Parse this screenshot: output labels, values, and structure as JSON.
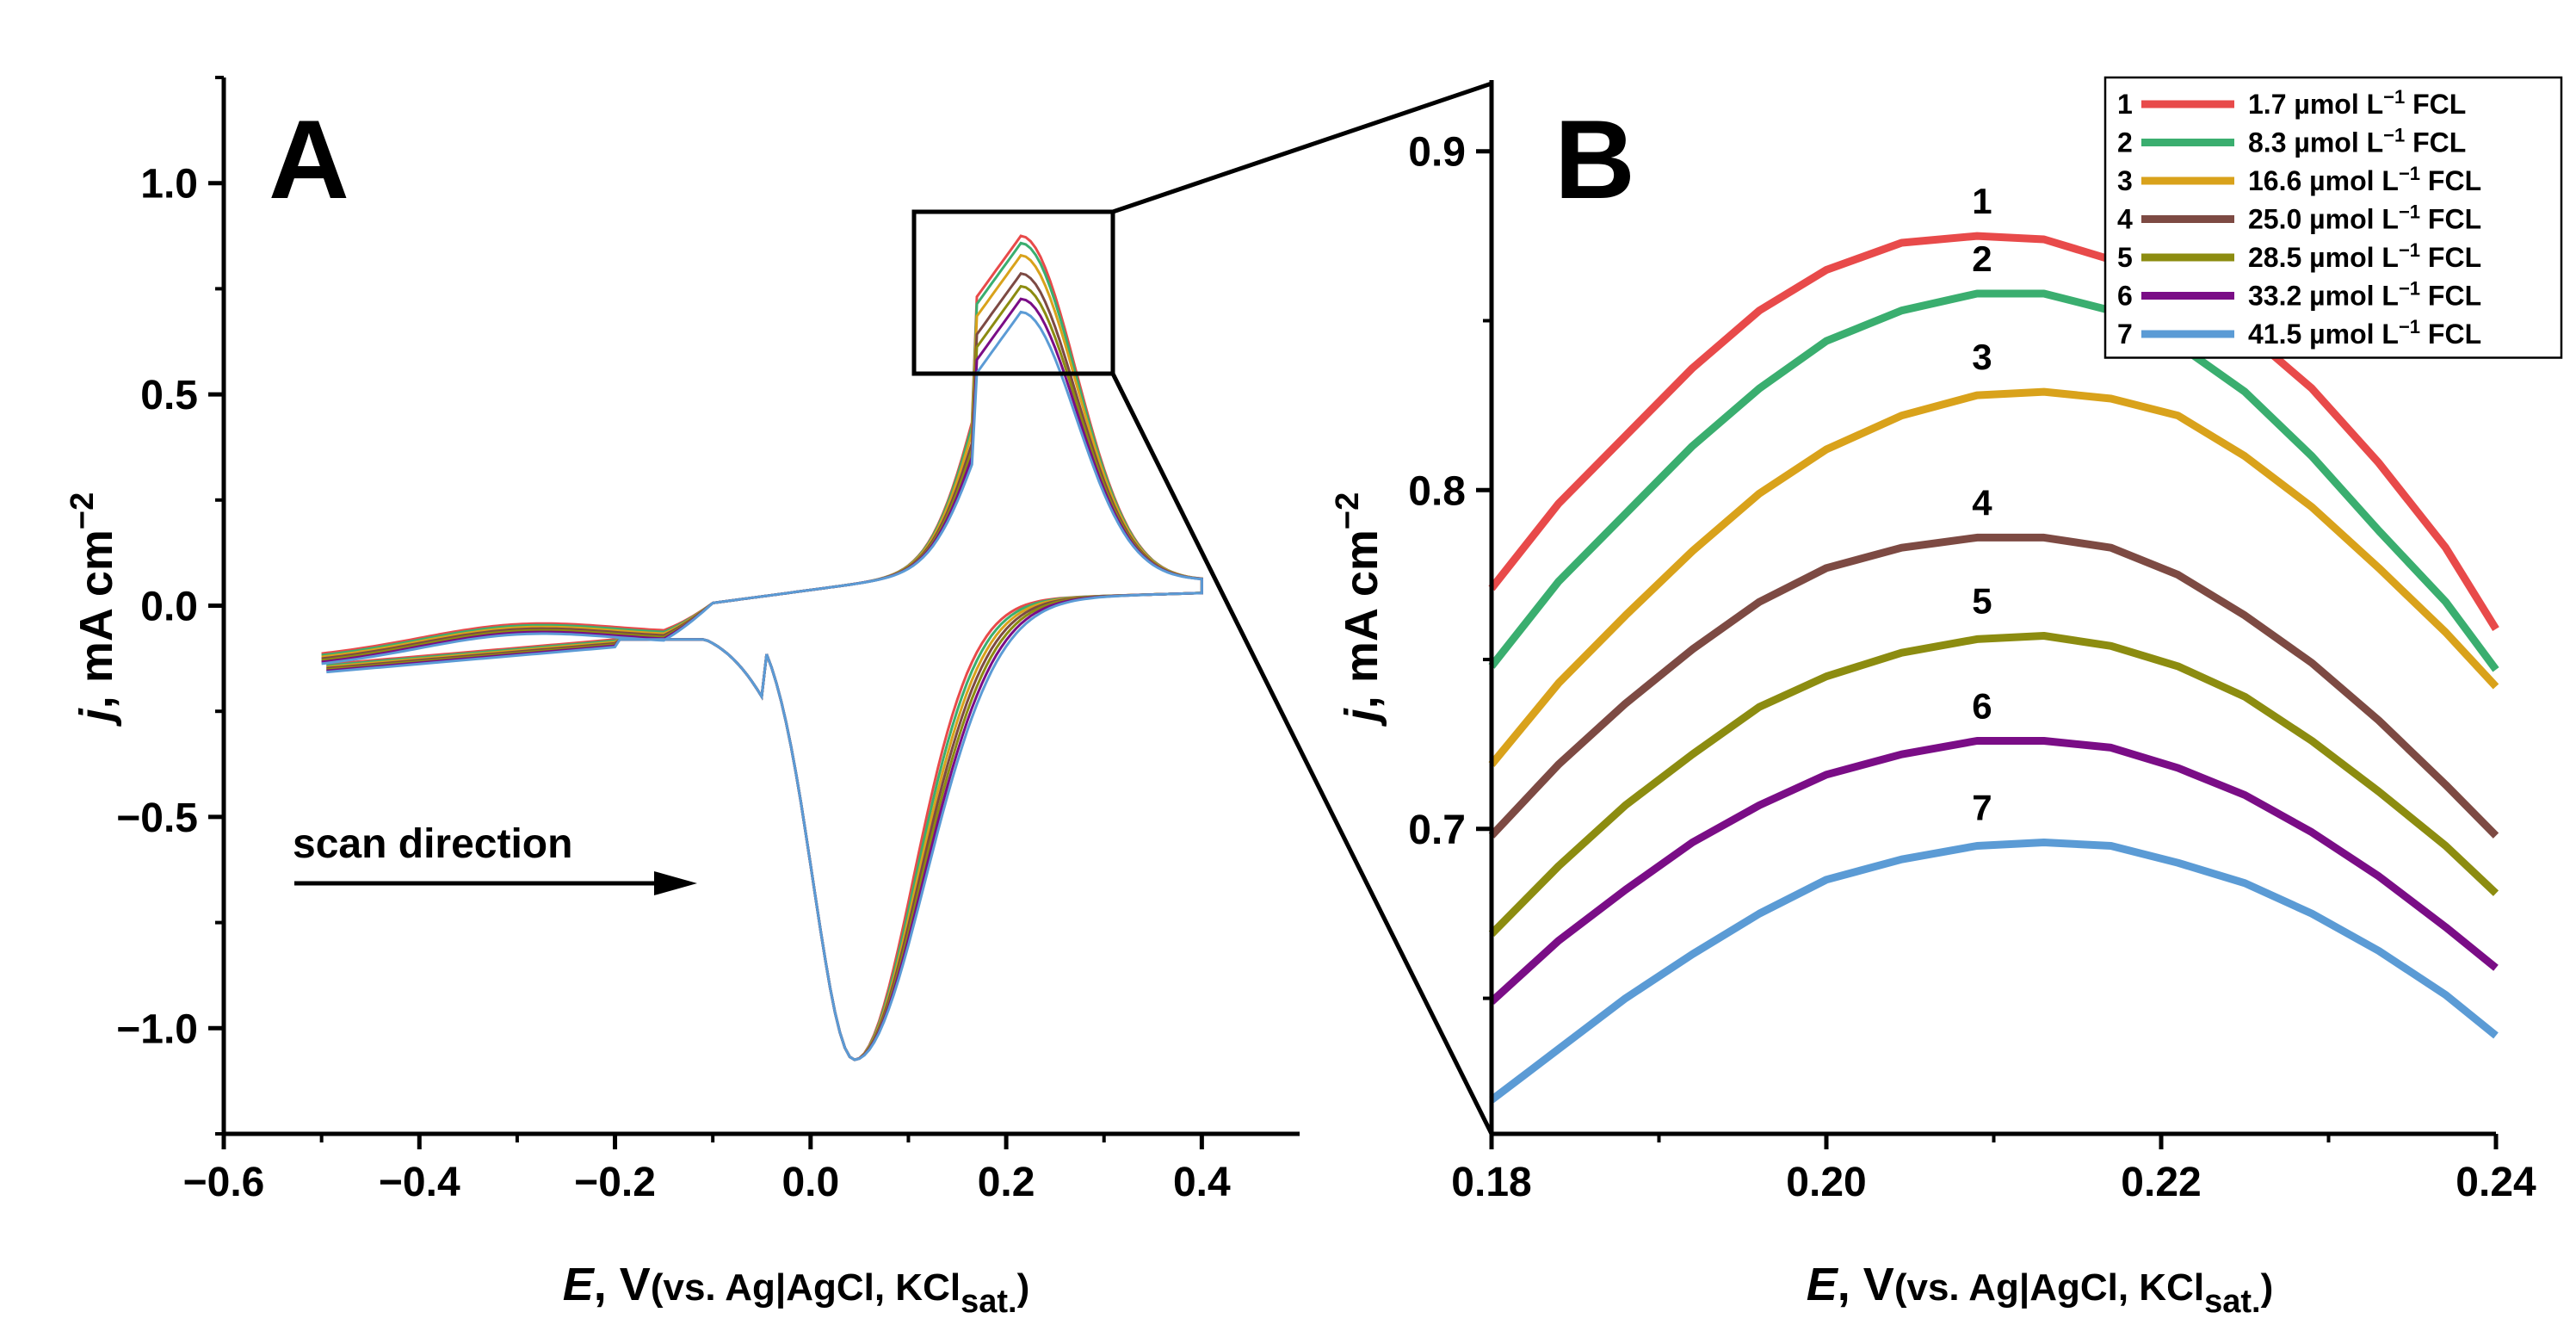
{
  "chart_data": [
    {
      "panel_label": "A",
      "type": "line",
      "title": "",
      "xlabel": {
        "italic": "E",
        "main": ", V",
        "paren_prefix": "(vs. Ag|AgCl, KCl",
        "sub": "sat.",
        "paren_suffix": ")"
      },
      "ylabel": {
        "italic": "j",
        "main": ", mA cm",
        "sup": "−2"
      },
      "xlim": [
        -0.6,
        0.5
      ],
      "ylim": [
        -1.25,
        1.25
      ],
      "xticks": [
        -0.6,
        -0.4,
        -0.2,
        0.0,
        0.2,
        0.4
      ],
      "xtick_labels": [
        "−0.6",
        "−0.4",
        "−0.2",
        "0.0",
        "0.2",
        "0.4"
      ],
      "yticks": [
        -1.0,
        -0.5,
        0.0,
        0.5,
        1.0
      ],
      "ytick_labels": [
        "−1.0",
        "−0.5",
        "0.0",
        "0.5",
        "1.0"
      ],
      "annotation": "scan direction",
      "zoom_box": {
        "x": [
          0.11,
          0.31
        ],
        "y": [
          0.56,
          0.94
        ]
      },
      "series": [
        {
          "name": "1",
          "color": "#e84a4a",
          "peak_anodic": 0.875,
          "peak_cathodic": -1.05
        },
        {
          "name": "2",
          "color": "#3aae6f",
          "peak_anodic": 0.858,
          "peak_cathodic": -1.05
        },
        {
          "name": "3",
          "color": "#d9a21b",
          "peak_anodic": 0.829,
          "peak_cathodic": -1.05
        },
        {
          "name": "4",
          "color": "#7d4a43",
          "peak_anodic": 0.786,
          "peak_cathodic": -1.05
        },
        {
          "name": "5",
          "color": "#8c8c10",
          "peak_anodic": 0.756,
          "peak_cathodic": -1.05
        },
        {
          "name": "6",
          "color": "#7a0d86",
          "peak_anodic": 0.726,
          "peak_cathodic": -1.05
        },
        {
          "name": "7",
          "color": "#5b9bd5",
          "peak_anodic": 0.695,
          "peak_cathodic": -1.05
        }
      ]
    },
    {
      "panel_label": "B",
      "type": "line",
      "title": "",
      "xlabel": {
        "italic": "E",
        "main": ", V",
        "paren_prefix": "(vs. Ag|AgCl, KCl",
        "sub": "sat.",
        "paren_suffix": ")"
      },
      "ylabel": {
        "italic": "j",
        "main": ", mA cm",
        "sup": "−2"
      },
      "xlim": [
        0.18,
        0.24
      ],
      "ylim": [
        0.61,
        0.92
      ],
      "xticks": [
        0.18,
        0.2,
        0.22,
        0.24
      ],
      "xtick_labels": [
        "0.18",
        "0.20",
        "0.22",
        "0.24"
      ],
      "yticks": [
        0.7,
        0.8,
        0.9
      ],
      "ytick_labels": [
        "0.7",
        "0.8",
        "0.9"
      ],
      "x": [
        0.18,
        0.184,
        0.188,
        0.192,
        0.196,
        0.2,
        0.2045,
        0.209,
        0.213,
        0.217,
        0.221,
        0.225,
        0.229,
        0.233,
        0.237,
        0.24
      ],
      "series": [
        {
          "name": "1",
          "label": "1.7 µmol L",
          "label_sup": "−1",
          "label_suffix": " FCL",
          "color": "#e84a4a",
          "values": [
            0.771,
            0.796,
            0.816,
            0.836,
            0.853,
            0.865,
            0.873,
            0.875,
            0.874,
            0.868,
            0.86,
            0.847,
            0.83,
            0.808,
            0.783,
            0.759
          ]
        },
        {
          "name": "2",
          "label": "8.3 µmol L",
          "label_sup": "−1",
          "label_suffix": " FCL",
          "color": "#3aae6f",
          "values": [
            0.748,
            0.773,
            0.793,
            0.813,
            0.83,
            0.844,
            0.853,
            0.858,
            0.858,
            0.853,
            0.843,
            0.829,
            0.81,
            0.788,
            0.767,
            0.747
          ]
        },
        {
          "name": "3",
          "label": "16.6 µmol L",
          "label_sup": "−1",
          "label_suffix": " FCL",
          "color": "#d9a21b",
          "values": [
            0.719,
            0.743,
            0.763,
            0.782,
            0.799,
            0.812,
            0.822,
            0.828,
            0.829,
            0.827,
            0.822,
            0.81,
            0.795,
            0.777,
            0.758,
            0.742
          ]
        },
        {
          "name": "4",
          "label": "25.0 µmol L",
          "label_sup": "−1",
          "label_suffix": " FCL",
          "color": "#7d4a43",
          "values": [
            0.698,
            0.719,
            0.737,
            0.753,
            0.767,
            0.777,
            0.783,
            0.786,
            0.786,
            0.783,
            0.775,
            0.763,
            0.749,
            0.732,
            0.713,
            0.698
          ]
        },
        {
          "name": "5",
          "label": "28.5 µmol L",
          "label_sup": "−1",
          "label_suffix": " FCL",
          "color": "#8c8c10",
          "values": [
            0.669,
            0.689,
            0.707,
            0.722,
            0.736,
            0.745,
            0.752,
            0.756,
            0.757,
            0.754,
            0.748,
            0.739,
            0.726,
            0.711,
            0.695,
            0.681
          ]
        },
        {
          "name": "6",
          "label": "33.2 µmol L",
          "label_sup": "−1",
          "label_suffix": " FCL",
          "color": "#7a0d86",
          "values": [
            0.649,
            0.667,
            0.682,
            0.696,
            0.707,
            0.716,
            0.722,
            0.726,
            0.726,
            0.724,
            0.718,
            0.71,
            0.699,
            0.686,
            0.671,
            0.659
          ]
        },
        {
          "name": "7",
          "label": "41.5 µmol L",
          "label_sup": "−1",
          "label_suffix": " FCL",
          "color": "#5b9bd5",
          "values": [
            0.62,
            0.635,
            0.65,
            0.663,
            0.675,
            0.685,
            0.691,
            0.695,
            0.696,
            0.695,
            0.69,
            0.684,
            0.675,
            0.664,
            0.651,
            0.639
          ]
        }
      ],
      "legend_position": "top-right"
    }
  ]
}
